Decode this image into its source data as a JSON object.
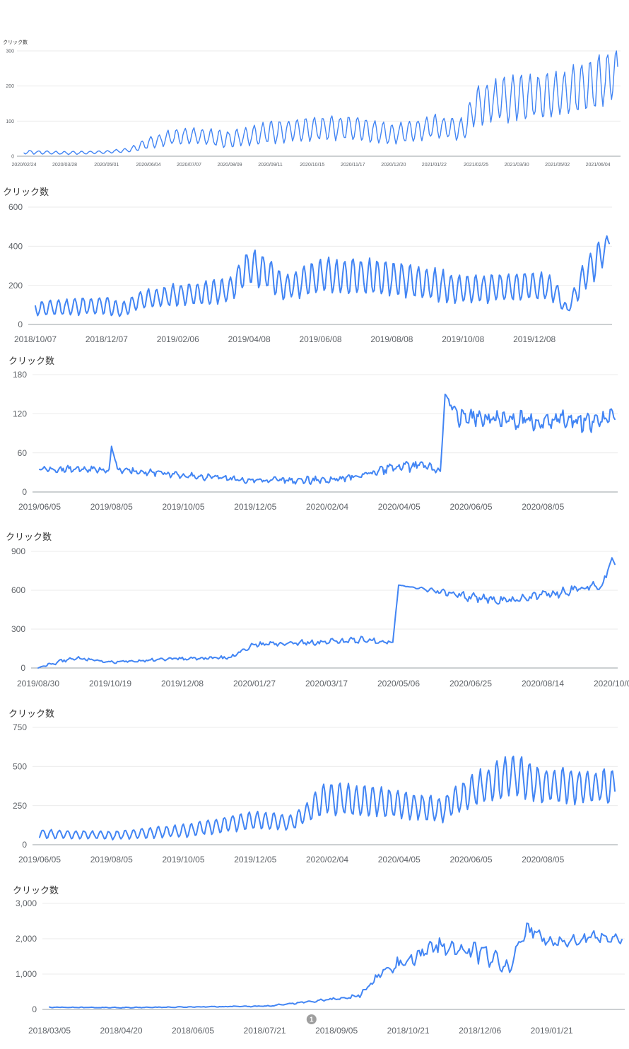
{
  "line_color": "#4285f4",
  "annotation_color": "#9e9e9e",
  "chart_data": [
    {
      "type": "line",
      "ylabel": "クリック数",
      "yticks": [
        0,
        100,
        200,
        300
      ],
      "ylim": [
        0,
        300
      ],
      "xticks": [
        "2020/02/24",
        "2020/03/28",
        "2020/05/01",
        "2020/06/04",
        "2020/07/07",
        "2020/08/09",
        "2020/09/11",
        "2020/10/15",
        "2020/11/17",
        "2020/12/20",
        "2021/01/22",
        "2021/02/25",
        "2021/03/30",
        "2021/05/02",
        "2021/06/04"
      ],
      "weekly_pattern": true,
      "x": [
        "2020/02/24",
        "2020/03/28",
        "2020/05/01",
        "2020/05/20",
        "2020/06/04",
        "2020/06/20",
        "2020/07/07",
        "2020/08/09",
        "2020/09/11",
        "2020/10/15",
        "2020/11/17",
        "2020/12/20",
        "2021/01/22",
        "2021/02/15",
        "2021/02/25",
        "2021/03/30",
        "2021/05/02",
        "2021/06/04",
        "2021/06/20"
      ],
      "values": [
        12,
        9,
        12,
        18,
        38,
        52,
        60,
        48,
        68,
        78,
        82,
        62,
        85,
        75,
        150,
        165,
        175,
        210,
        240
      ],
      "amplitude": [
        5,
        4,
        4,
        6,
        16,
        20,
        22,
        22,
        30,
        32,
        32,
        26,
        32,
        30,
        55,
        60,
        62,
        68,
        60
      ],
      "grid": true,
      "legend": "none"
    },
    {
      "type": "line",
      "ylabel": "クリック数",
      "yticks": [
        0,
        200,
        400,
        600
      ],
      "ylim": [
        0,
        600
      ],
      "xticks": [
        "2018/10/07",
        "2018/12/07",
        "2019/02/06",
        "2019/04/08",
        "2019/06/08",
        "2019/08/08",
        "2019/10/08",
        "2019/12/08"
      ],
      "weekly_pattern": true,
      "x": [
        "2018/10/07",
        "2018/12/07",
        "2018/12/20",
        "2019/01/05",
        "2019/02/06",
        "2019/03/20",
        "2019/04/08",
        "2019/04/25",
        "2019/05/08",
        "2019/06/08",
        "2019/08/08",
        "2019/10/08",
        "2019/12/08",
        "2019/12/25",
        "2020/01/05",
        "2020/01/20",
        "2020/02/01",
        "2020/02/10"
      ],
      "values": [
        80,
        100,
        70,
        130,
        150,
        170,
        300,
        260,
        190,
        250,
        240,
        180,
        200,
        180,
        70,
        260,
        340,
        430
      ],
      "amplitude": [
        35,
        45,
        35,
        45,
        55,
        60,
        85,
        80,
        60,
        90,
        85,
        70,
        70,
        60,
        20,
        80,
        90,
        30
      ],
      "grid": true,
      "legend": "none"
    },
    {
      "type": "line",
      "ylabel": "クリック数",
      "yticks": [
        0,
        60,
        120,
        180
      ],
      "ylim": [
        0,
        180
      ],
      "xticks": [
        "2019/06/05",
        "2019/08/05",
        "2019/10/05",
        "2019/12/05",
        "2020/02/04",
        "2020/04/05",
        "2020/06/05",
        "2020/08/05"
      ],
      "weekly_pattern": false,
      "x": [
        "2019/06/05",
        "2019/07/20",
        "2019/08/03",
        "2019/08/05",
        "2019/08/10",
        "2019/10/05",
        "2019/12/05",
        "2020/02/04",
        "2020/03/15",
        "2020/04/05",
        "2020/05/01",
        "2020/05/10",
        "2020/05/14",
        "2020/05/25",
        "2020/08/05",
        "2020/09/20",
        "2020/10/05"
      ],
      "values": [
        35,
        35,
        32,
        70,
        35,
        25,
        18,
        18,
        30,
        40,
        40,
        30,
        150,
        115,
        110,
        108,
        120
      ],
      "amplitude": [
        5,
        5,
        4,
        0,
        5,
        5,
        5,
        6,
        6,
        9,
        9,
        3,
        0,
        14,
        15,
        16,
        8
      ],
      "grid": true,
      "legend": "none"
    },
    {
      "type": "line",
      "ylabel": "クリック数",
      "yticks": [
        0,
        300,
        600,
        900
      ],
      "ylim": [
        0,
        900
      ],
      "xticks": [
        "2019/08/30",
        "2019/10/19",
        "2019/12/08",
        "2020/01/27",
        "2020/03/17",
        "2020/05/06",
        "2020/06/25",
        "2020/08/14",
        "2020/10/03"
      ],
      "weekly_pattern": false,
      "x": [
        "2019/08/30",
        "2019/09/10",
        "2019/09/25",
        "2019/10/19",
        "2019/12/08",
        "2020/01/10",
        "2020/01/27",
        "2020/03/17",
        "2020/04/10",
        "2020/05/02",
        "2020/05/06",
        "2020/06/25",
        "2020/07/20",
        "2020/08/14",
        "2020/09/25",
        "2020/10/01",
        "2020/10/03"
      ],
      "values": [
        0,
        40,
        80,
        45,
        75,
        80,
        180,
        200,
        220,
        200,
        640,
        550,
        520,
        560,
        650,
        850,
        800
      ],
      "amplitude": [
        0,
        15,
        15,
        10,
        15,
        15,
        18,
        25,
        30,
        12,
        0,
        35,
        30,
        35,
        40,
        0,
        0
      ],
      "grid": true,
      "legend": "none"
    },
    {
      "type": "line",
      "ylabel": "クリック数",
      "yticks": [
        0,
        250,
        500,
        750
      ],
      "ylim": [
        0,
        750
      ],
      "xticks": [
        "2019/06/05",
        "2019/08/05",
        "2019/10/05",
        "2019/12/05",
        "2020/02/04",
        "2020/04/05",
        "2020/06/05",
        "2020/08/05"
      ],
      "weekly_pattern": true,
      "x": [
        "2019/06/05",
        "2019/08/05",
        "2019/10/05",
        "2019/12/05",
        "2020/01/05",
        "2020/02/04",
        "2020/04/05",
        "2020/05/10",
        "2020/06/05",
        "2020/07/10",
        "2020/08/05",
        "2020/10/05"
      ],
      "values": [
        70,
        60,
        90,
        160,
        140,
        300,
        260,
        220,
        340,
        450,
        380,
        370
      ],
      "amplitude": [
        25,
        25,
        40,
        55,
        45,
        100,
        85,
        75,
        100,
        120,
        110,
        100
      ],
      "grid": true,
      "legend": "none"
    },
    {
      "type": "line",
      "ylabel": "クリック数",
      "yticks": [
        "0",
        "1,000",
        "2,000",
        "3,000"
      ],
      "ylim": [
        0,
        3000
      ],
      "xticks": [
        "2018/03/05",
        "2018/04/20",
        "2018/06/05",
        "2018/07/21",
        "2018/09/05",
        "2018/10/21",
        "2018/12/06",
        "2019/01/21"
      ],
      "weekly_pattern": false,
      "x": [
        "2018/03/05",
        "2018/04/20",
        "2018/06/05",
        "2018/07/21",
        "2018/08/15",
        "2018/09/05",
        "2018/09/20",
        "2018/10/05",
        "2018/10/21",
        "2018/11/10",
        "2018/12/06",
        "2018/12/25",
        "2019/01/05",
        "2019/01/21",
        "2019/02/20",
        "2019/03/07"
      ],
      "values": [
        60,
        50,
        70,
        90,
        200,
        300,
        400,
        1100,
        1400,
        1800,
        1600,
        1200,
        2300,
        1900,
        2050,
        2000
      ],
      "amplitude": [
        10,
        10,
        10,
        15,
        30,
        40,
        60,
        150,
        200,
        250,
        280,
        250,
        180,
        160,
        170,
        120
      ],
      "grid": true,
      "legend": "none",
      "annotations": [
        {
          "date": "2018/08/20",
          "label": "1"
        }
      ]
    }
  ]
}
